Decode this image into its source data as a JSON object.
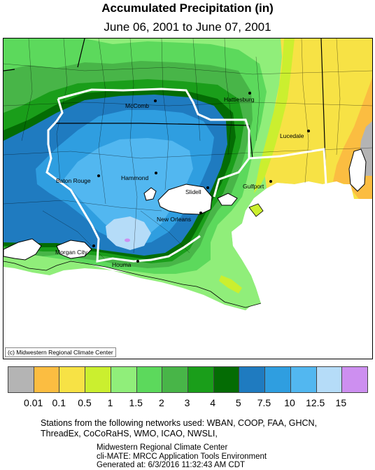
{
  "title": "Accumulated Precipitation (in)",
  "subtitle": "June 06, 2001 to June 07, 2001",
  "credit": "(c) Midwestern Regional Climate Center",
  "cities": [
    {
      "name": "McComb"
    },
    {
      "name": "Hattiesburg"
    },
    {
      "name": "Lucedale"
    },
    {
      "name": "Baton Rouge"
    },
    {
      "name": "Hammond"
    },
    {
      "name": "Slidell"
    },
    {
      "name": "Gulfport"
    },
    {
      "name": "New Orleans"
    },
    {
      "name": "Morgan City"
    },
    {
      "name": "Houma"
    }
  ],
  "legend": {
    "colors": [
      "#b4b4b4",
      "#fbbd41",
      "#f7e245",
      "#cbef2f",
      "#90ee7a",
      "#5cd95c",
      "#48b548",
      "#1a9e1a",
      "#046c04",
      "#1f7bc0",
      "#2f9ee0",
      "#52b7f0",
      "#b5dcf8",
      "#cd8ff0"
    ],
    "labels": [
      "0.01",
      "0.1",
      "0.5",
      "1",
      "1.5",
      "2",
      "3",
      "4",
      "5",
      "7.5",
      "10",
      "12.5",
      "15"
    ]
  },
  "footer_lines": [
    "Stations from the following networks used: WBAN, COOP, FAA, GHCN,",
    "ThreadEx, CoCoRaHS, WMO, ICAO, NWSLI,"
  ],
  "footer2_lines": [
    "Midwestern Regional Climate Center",
    "cli-MATE: MRCC Application Tools Environment",
    "Generated at: 6/3/2016 11:32:43 AM CDT"
  ]
}
